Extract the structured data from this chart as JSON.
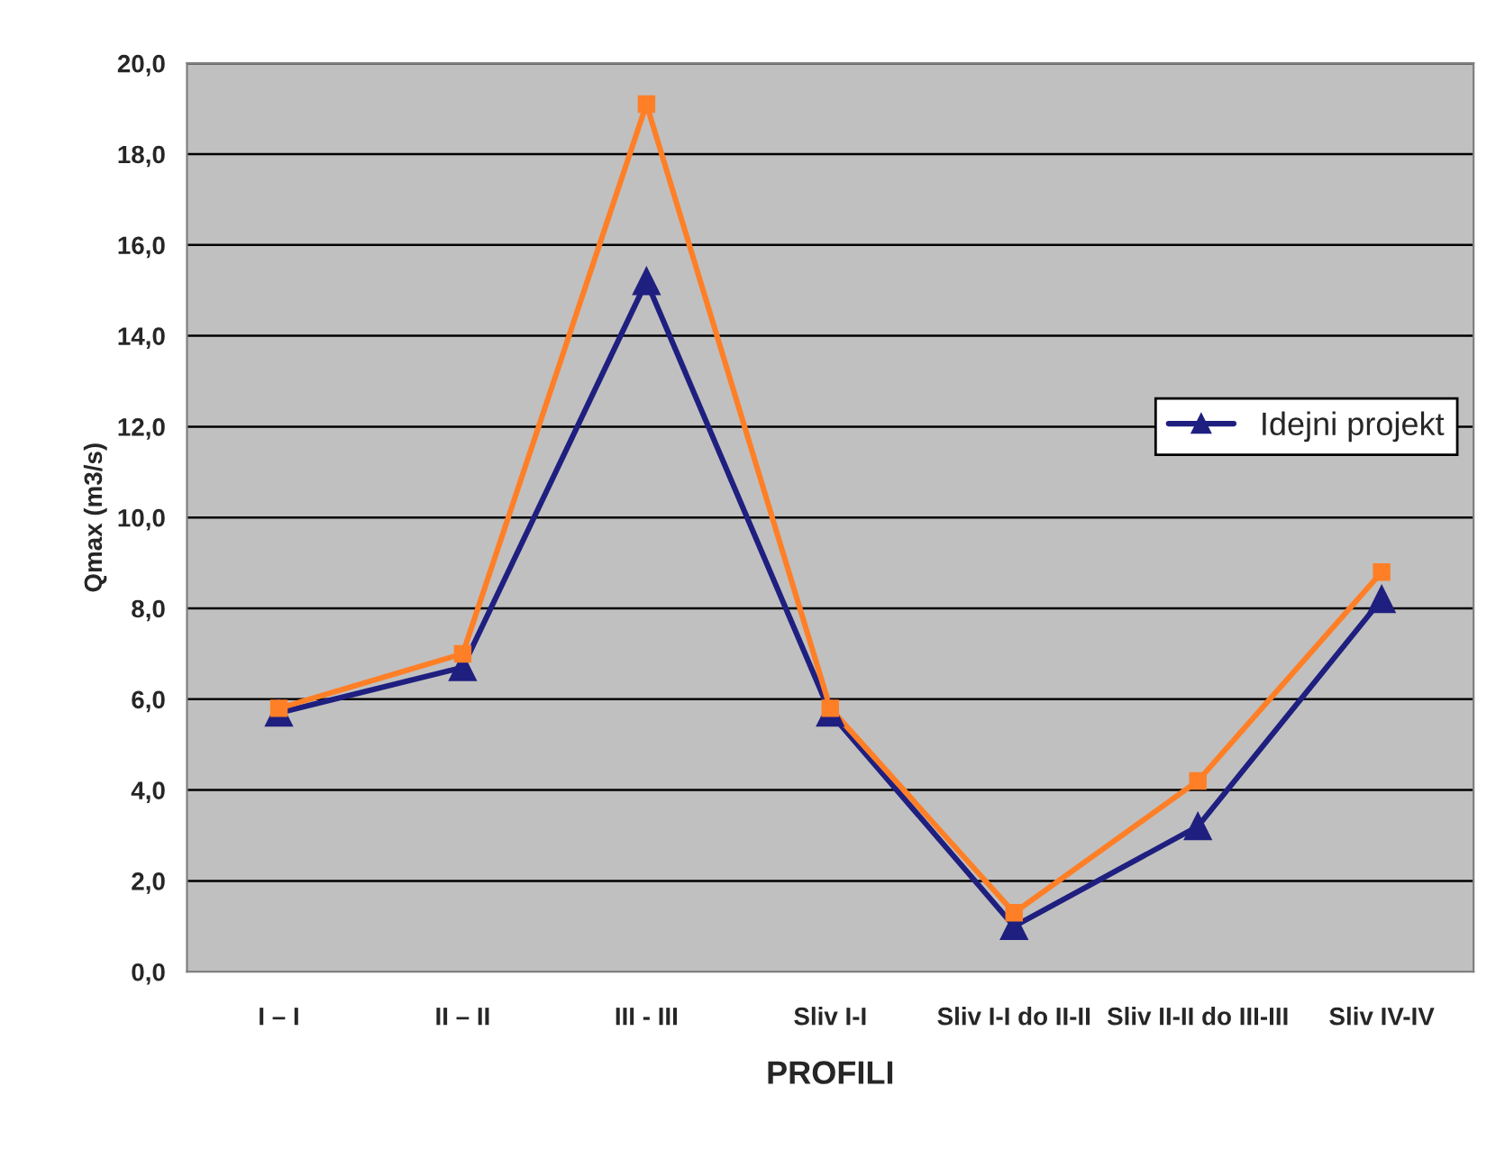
{
  "chart_data": {
    "type": "line",
    "xlabel": "PROFILI",
    "ylabel": "Qmax (m3/s)",
    "categories": [
      "I – I",
      "II – II",
      "III - III",
      "Sliv I-I",
      "Sliv I-I do II-II",
      "Sliv II-II do III-III",
      "Sliv IV-IV"
    ],
    "series": [
      {
        "name": "Idejni projekt",
        "color": "#1f1f80",
        "marker": "triangle",
        "values": [
          5.7,
          6.7,
          15.2,
          5.7,
          1.0,
          3.2,
          8.2
        ]
      },
      {
        "color": "#ff7f27",
        "marker": "square",
        "values": [
          5.8,
          7.0,
          19.1,
          5.8,
          1.3,
          4.2,
          8.8
        ]
      }
    ],
    "ylim": [
      0,
      20
    ],
    "yticks": [
      {
        "value": 0,
        "label": "0,0"
      },
      {
        "value": 2,
        "label": "2,0"
      },
      {
        "value": 4,
        "label": "4,0"
      },
      {
        "value": 6,
        "label": "6,0"
      },
      {
        "value": 8,
        "label": "8,0"
      },
      {
        "value": 10,
        "label": "10,0"
      },
      {
        "value": 12,
        "label": "12,0"
      },
      {
        "value": 14,
        "label": "14,0"
      },
      {
        "value": 16,
        "label": "16,0"
      },
      {
        "value": 18,
        "label": "18,0"
      },
      {
        "value": 20,
        "label": "20,0"
      }
    ],
    "grid": "y",
    "legend": "right",
    "line_style": "solid"
  }
}
